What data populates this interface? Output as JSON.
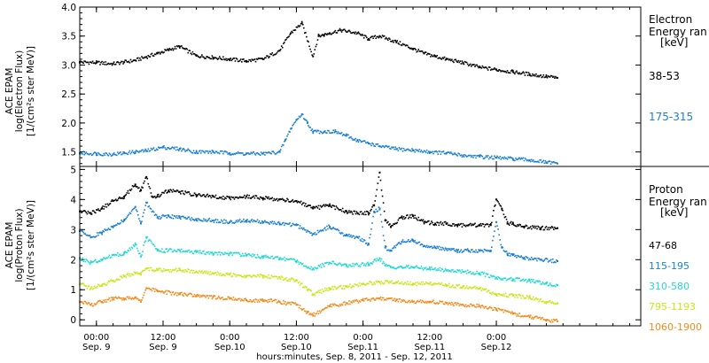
{
  "chart_data": [
    {
      "type": "scatter",
      "ylabel_lines": [
        "ACE EPAM",
        "log(Electron Flux)",
        "[1/(cm²s ster MeV)]"
      ],
      "legend_title_lines": [
        "Electron",
        "Energy ran",
        "[keV]"
      ],
      "ylim": [
        1.25,
        4.0
      ],
      "y_ticks": [
        "1.5",
        "2.0",
        "2.5",
        "3.0",
        "3.5",
        "4.0"
      ],
      "y_tick_values": [
        1.5,
        2.0,
        2.5,
        3.0,
        3.5,
        4.0
      ],
      "series": [
        {
          "name": "38-53",
          "color": "#000000",
          "x_hours": [
            0,
            3,
            6,
            8,
            10,
            12,
            14,
            16,
            18,
            21,
            24,
            27,
            30,
            33,
            36,
            38,
            40,
            42,
            43,
            44,
            45,
            47,
            50,
            52,
            54,
            57,
            60,
            62,
            64,
            66,
            69,
            72,
            75,
            78,
            81,
            84,
            86
          ],
          "values": [
            3.05,
            3.04,
            3.02,
            3.05,
            3.08,
            3.14,
            3.2,
            3.26,
            3.32,
            3.16,
            3.13,
            3.1,
            3.07,
            3.1,
            3.25,
            3.55,
            3.72,
            3.15,
            3.5,
            3.52,
            3.55,
            3.6,
            3.55,
            3.45,
            3.5,
            3.4,
            3.28,
            3.2,
            3.15,
            3.1,
            3.04,
            2.96,
            2.92,
            2.88,
            2.84,
            2.8,
            2.78
          ]
        },
        {
          "name": "175-315",
          "color": "#1a7fd0",
          "x_hours": [
            0,
            3,
            6,
            8,
            10,
            12,
            15,
            18,
            21,
            24,
            27,
            30,
            33,
            36,
            37,
            38,
            39,
            40,
            41,
            42,
            44,
            46,
            48,
            50,
            52,
            54,
            57,
            60,
            63,
            66,
            69,
            72,
            75,
            78,
            81,
            84,
            86
          ],
          "values": [
            1.48,
            1.47,
            1.46,
            1.48,
            1.5,
            1.52,
            1.58,
            1.55,
            1.5,
            1.5,
            1.48,
            1.47,
            1.47,
            1.5,
            1.7,
            1.9,
            2.05,
            2.15,
            2.0,
            1.85,
            1.85,
            1.85,
            1.78,
            1.7,
            1.65,
            1.6,
            1.55,
            1.53,
            1.5,
            1.48,
            1.44,
            1.42,
            1.4,
            1.38,
            1.36,
            1.32,
            1.3
          ]
        }
      ]
    },
    {
      "type": "scatter",
      "ylabel_lines": [
        "ACE EPAM",
        "log(Proton Flux)",
        "[1/(cm²s ster MeV)]"
      ],
      "legend_title_lines": [
        "Proton",
        "Energy ran",
        "[keV]"
      ],
      "ylim": [
        -0.2,
        5.1
      ],
      "y_ticks": [
        "0",
        "1",
        "2",
        "3",
        "4",
        "5"
      ],
      "y_tick_values": [
        0,
        1,
        2,
        3,
        4,
        5
      ],
      "series": [
        {
          "name": "47-68",
          "color": "#000000",
          "x_hours": [
            0,
            2,
            4,
            6,
            8,
            10,
            11,
            12,
            13,
            14,
            16,
            18,
            21,
            24,
            27,
            30,
            33,
            36,
            39,
            42,
            45,
            48,
            50,
            52,
            53,
            54,
            55,
            56,
            58,
            60,
            62,
            64,
            66,
            68,
            70,
            72,
            74,
            75,
            76,
            77,
            78,
            80,
            83,
            86
          ],
          "values": [
            3.6,
            3.55,
            3.7,
            3.95,
            4.1,
            4.5,
            4.3,
            4.75,
            4.1,
            4.1,
            4.3,
            4.25,
            4.15,
            4.1,
            4.05,
            4.1,
            4.05,
            4.0,
            3.95,
            3.7,
            3.8,
            3.6,
            3.55,
            3.55,
            3.8,
            4.9,
            3.3,
            3.1,
            3.4,
            3.45,
            3.25,
            3.2,
            3.2,
            3.15,
            3.15,
            3.15,
            3.15,
            4.0,
            3.7,
            3.2,
            3.2,
            3.1,
            3.05,
            3.05
          ]
        },
        {
          "name": "115-195",
          "color": "#1a7fd0",
          "x_hours": [
            0,
            2,
            4,
            6,
            8,
            10,
            11,
            12,
            14,
            16,
            18,
            21,
            24,
            27,
            30,
            33,
            36,
            39,
            42,
            45,
            48,
            50,
            52,
            53,
            54,
            55,
            56,
            58,
            60,
            62,
            64,
            66,
            68,
            70,
            72,
            74,
            75,
            76,
            77,
            78,
            80,
            83,
            86
          ],
          "values": [
            2.95,
            2.75,
            2.9,
            3.1,
            3.3,
            3.75,
            3.2,
            3.9,
            3.4,
            3.45,
            3.4,
            3.35,
            3.3,
            3.25,
            3.3,
            3.25,
            3.2,
            3.15,
            2.85,
            3.1,
            2.8,
            2.75,
            2.5,
            3.6,
            3.7,
            2.4,
            2.3,
            2.6,
            2.65,
            2.45,
            2.4,
            2.35,
            2.3,
            2.3,
            2.3,
            2.3,
            3.25,
            2.4,
            2.2,
            2.15,
            2.05,
            2.0,
            1.95
          ]
        },
        {
          "name": "310-580",
          "color": "#22d8d0",
          "x_hours": [
            0,
            2,
            4,
            6,
            8,
            10,
            11,
            12,
            14,
            18,
            21,
            24,
            27,
            30,
            33,
            36,
            39,
            42,
            45,
            48,
            52,
            54,
            55,
            56,
            58,
            60,
            63,
            66,
            69,
            72,
            75,
            78,
            81,
            84,
            86
          ],
          "values": [
            2.05,
            1.9,
            2.0,
            2.15,
            2.2,
            2.5,
            2.1,
            2.75,
            2.3,
            2.3,
            2.25,
            2.2,
            2.2,
            2.15,
            2.1,
            2.05,
            1.95,
            1.7,
            1.9,
            1.8,
            1.85,
            2.05,
            1.8,
            1.75,
            1.75,
            1.75,
            1.7,
            1.65,
            1.6,
            1.55,
            1.4,
            1.35,
            1.3,
            1.2,
            1.15
          ]
        },
        {
          "name": "795-1193",
          "color": "#c8e61a",
          "x_hours": [
            0,
            2,
            4,
            6,
            8,
            10,
            11,
            12,
            14,
            18,
            21,
            24,
            27,
            30,
            33,
            36,
            39,
            41,
            42,
            45,
            48,
            51,
            54,
            57,
            60,
            63,
            66,
            69,
            72,
            75,
            78,
            81,
            84,
            86
          ],
          "values": [
            1.2,
            1.05,
            1.15,
            1.3,
            1.45,
            1.55,
            1.5,
            1.7,
            1.65,
            1.65,
            1.6,
            1.55,
            1.5,
            1.45,
            1.45,
            1.4,
            1.3,
            1.0,
            0.85,
            1.05,
            1.1,
            1.2,
            1.25,
            1.25,
            1.2,
            1.2,
            1.15,
            1.1,
            1.05,
            0.85,
            0.8,
            0.75,
            0.6,
            0.55
          ]
        },
        {
          "name": "1060-1900",
          "color": "#f08a1a",
          "x_hours": [
            0,
            2,
            4,
            6,
            8,
            10,
            11,
            12,
            14,
            18,
            21,
            24,
            27,
            30,
            33,
            36,
            39,
            41,
            42,
            45,
            48,
            51,
            54,
            57,
            60,
            63,
            66,
            69,
            72,
            75,
            78,
            81,
            84,
            86
          ],
          "values": [
            0.6,
            0.5,
            0.6,
            0.7,
            0.7,
            0.75,
            0.6,
            1.05,
            0.95,
            0.85,
            0.8,
            0.75,
            0.7,
            0.65,
            0.65,
            0.6,
            0.5,
            0.25,
            0.15,
            0.45,
            0.55,
            0.65,
            0.7,
            0.65,
            0.6,
            0.6,
            0.55,
            0.5,
            0.45,
            0.35,
            0.2,
            0.1,
            0.0,
            -0.05
          ]
        }
      ]
    }
  ],
  "time_axis": {
    "x_start": "2011-09-08 21:00",
    "x_end": "2011-09-12 02:00",
    "ticks": [
      {
        "time": "00:00",
        "date": "Sep. 9",
        "hour": 3
      },
      {
        "time": "12:00",
        "date": "Sep. 9",
        "hour": 15
      },
      {
        "time": "0:00",
        "date": "Sep.10",
        "hour": 27
      },
      {
        "time": "12:00",
        "date": "Sep.10",
        "hour": 39
      },
      {
        "time": "0:00",
        "date": "Sep.11",
        "hour": 51
      },
      {
        "time": "12:00",
        "date": "Sep.11",
        "hour": 63
      },
      {
        "time": "0:00",
        "date": "Sep.12",
        "hour": 75
      }
    ],
    "xlabel": "hours:minutes, Sep. 8, 2011 - Sep. 12, 2011"
  }
}
